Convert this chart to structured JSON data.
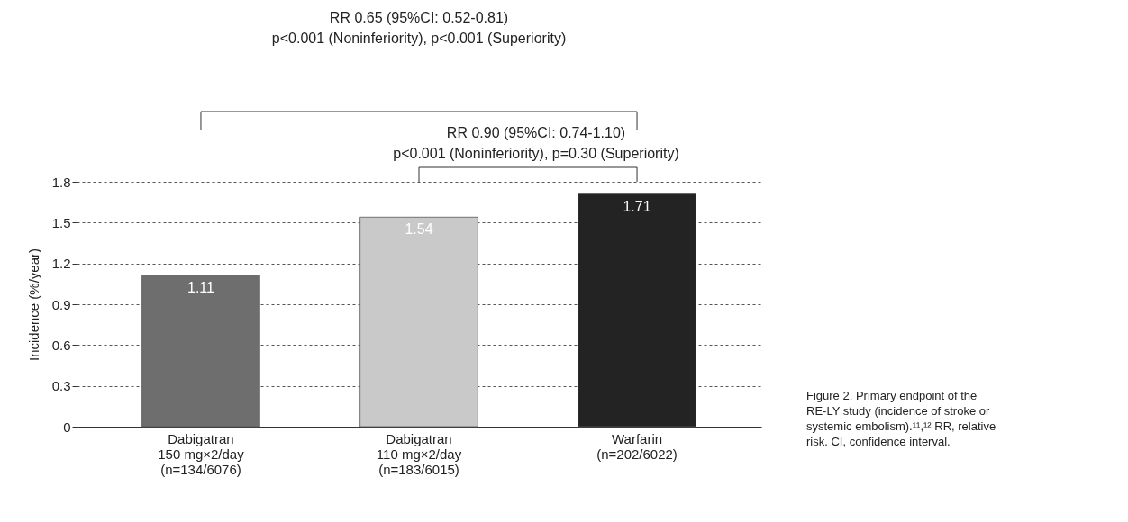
{
  "chart_data": {
    "type": "bar",
    "categories": [
      "Dabigatran\n150 mg×2/day\n(n=134/6076)",
      "Dabigatran\n110 mg×2/day\n(n=183/6015)",
      "Warfarin\n\n(n=202/6022)"
    ],
    "values": [
      1.11,
      1.54,
      1.71
    ],
    "colors": [
      "#6e6e6e",
      "#c9c9c9",
      "#232323"
    ],
    "ylabel": "Incidence (%/year)",
    "ylim": [
      0,
      1.8
    ],
    "yticks": [
      0,
      0.3,
      0.6,
      0.9,
      1.2,
      1.5,
      1.8
    ],
    "grid": "y",
    "data_labels": true,
    "annotations": [
      "RR 0.65 (95%CI: 0.52-0.81)\np<0.001 (Noninferiority), p<0.001 (Superiority)",
      "RR 0.90 (95%CI: 0.74-1.10)\np<0.001 (Noninferiority), p=0.30 (Superiority)",
      "Figure 2.  Primary endpoint of the\nRE-LY study (incidence of stroke or\nsystemic embolism).¹¹,¹² RR, relative\nrisk. CI, confidence interval."
    ]
  }
}
